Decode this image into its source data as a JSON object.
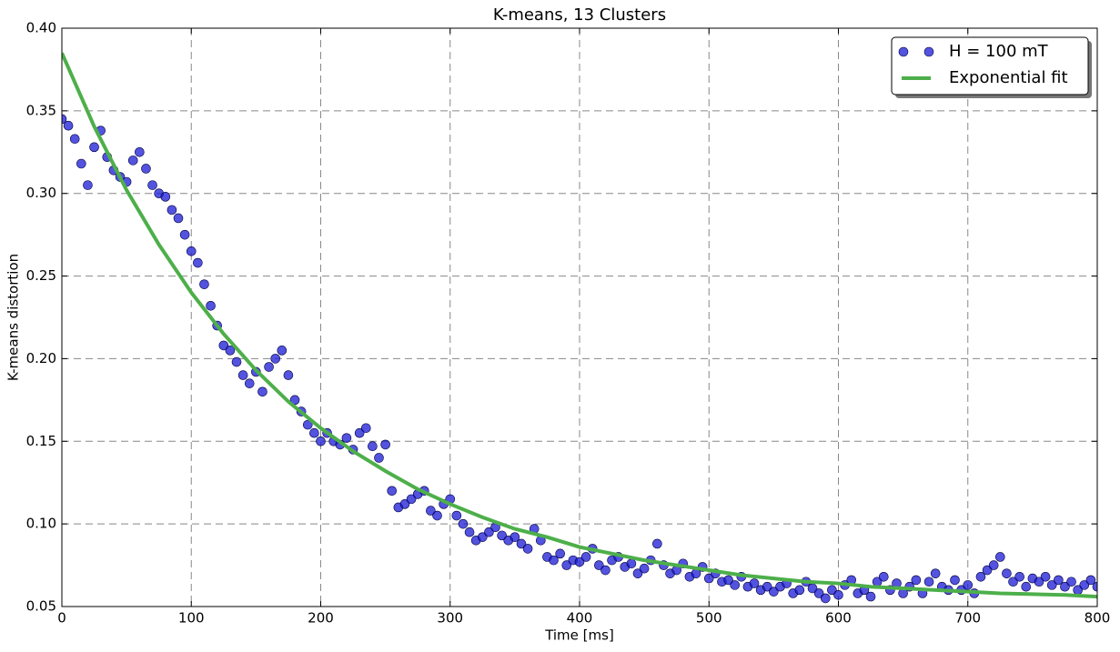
{
  "chart_data": {
    "type": "scatter",
    "title": "K-means, 13 Clusters",
    "xlabel": "Time [ms]",
    "ylabel": "K-means distortion",
    "xlim": [
      0,
      800
    ],
    "ylim": [
      0.05,
      0.4
    ],
    "xticks": [
      0,
      100,
      200,
      300,
      400,
      500,
      600,
      700,
      800
    ],
    "yticks": [
      0.05,
      {
        "value": 0.1,
        "label": "0.10"
      },
      0.15,
      {
        "value": 0.2,
        "label": "0.20"
      },
      0.25,
      {
        "value": 0.3,
        "label": "0.30"
      },
      0.35,
      {
        "value": 0.4,
        "label": "0.40"
      }
    ],
    "grid": true,
    "legend": "upper right",
    "series": [
      {
        "name": "H = 100 mT",
        "type": "scatter",
        "color": "#1a1ad6",
        "x": [
          0,
          5,
          10,
          15,
          20,
          25,
          30,
          35,
          40,
          45,
          50,
          55,
          60,
          65,
          70,
          75,
          80,
          85,
          90,
          95,
          100,
          105,
          110,
          115,
          120,
          125,
          130,
          135,
          140,
          145,
          150,
          155,
          160,
          165,
          170,
          175,
          180,
          185,
          190,
          195,
          200,
          205,
          210,
          215,
          220,
          225,
          230,
          235,
          240,
          245,
          250,
          255,
          260,
          265,
          270,
          275,
          280,
          285,
          290,
          295,
          300,
          305,
          310,
          315,
          320,
          325,
          330,
          335,
          340,
          345,
          350,
          355,
          360,
          365,
          370,
          375,
          380,
          385,
          390,
          395,
          400,
          405,
          410,
          415,
          420,
          425,
          430,
          435,
          440,
          445,
          450,
          455,
          460,
          465,
          470,
          475,
          480,
          485,
          490,
          495,
          500,
          505,
          510,
          515,
          520,
          525,
          530,
          535,
          540,
          545,
          550,
          555,
          560,
          565,
          570,
          575,
          580,
          585,
          590,
          595,
          600,
          605,
          610,
          615,
          620,
          625,
          630,
          635,
          640,
          645,
          650,
          655,
          660,
          665,
          670,
          675,
          680,
          685,
          690,
          695,
          700,
          705,
          710,
          715,
          720,
          725,
          730,
          735,
          740,
          745,
          750,
          755,
          760,
          765,
          770,
          775,
          780,
          785,
          790,
          795,
          800
        ],
        "values": [
          0.345,
          0.341,
          0.333,
          0.318,
          0.305,
          0.328,
          0.338,
          0.322,
          0.314,
          0.31,
          0.307,
          0.32,
          0.325,
          0.315,
          0.305,
          0.3,
          0.298,
          0.29,
          0.285,
          0.275,
          0.265,
          0.258,
          0.245,
          0.232,
          0.22,
          0.208,
          0.205,
          0.198,
          0.19,
          0.185,
          0.192,
          0.18,
          0.195,
          0.2,
          0.205,
          0.19,
          0.175,
          0.168,
          0.16,
          0.155,
          0.15,
          0.155,
          0.15,
          0.148,
          0.152,
          0.145,
          0.155,
          0.158,
          0.147,
          0.14,
          0.148,
          0.12,
          0.11,
          0.112,
          0.115,
          0.118,
          0.12,
          0.108,
          0.105,
          0.112,
          0.115,
          0.105,
          0.1,
          0.095,
          0.09,
          0.092,
          0.095,
          0.098,
          0.093,
          0.09,
          0.092,
          0.088,
          0.085,
          0.097,
          0.09,
          0.08,
          0.078,
          0.082,
          0.075,
          0.078,
          0.077,
          0.08,
          0.085,
          0.075,
          0.072,
          0.078,
          0.08,
          0.074,
          0.076,
          0.07,
          0.073,
          0.078,
          0.088,
          0.075,
          0.07,
          0.072,
          0.076,
          0.068,
          0.07,
          0.074,
          0.067,
          0.07,
          0.065,
          0.066,
          0.063,
          0.068,
          0.062,
          0.064,
          0.06,
          0.062,
          0.059,
          0.062,
          0.064,
          0.058,
          0.06,
          0.065,
          0.061,
          0.058,
          0.055,
          0.06,
          0.057,
          0.063,
          0.066,
          0.058,
          0.06,
          0.056,
          0.065,
          0.068,
          0.06,
          0.064,
          0.058,
          0.062,
          0.066,
          0.058,
          0.065,
          0.07,
          0.062,
          0.06,
          0.066,
          0.06,
          0.063,
          0.058,
          0.068,
          0.072,
          0.075,
          0.08,
          0.07,
          0.065,
          0.068,
          0.062,
          0.067,
          0.065,
          0.068,
          0.063,
          0.066,
          0.062,
          0.065,
          0.06,
          0.063,
          0.066,
          0.062
        ]
      },
      {
        "name": "Exponential fit",
        "type": "line",
        "color": "#4daf4a",
        "x": [
          0,
          25,
          50,
          75,
          100,
          125,
          150,
          175,
          200,
          225,
          250,
          275,
          300,
          325,
          350,
          375,
          400,
          425,
          450,
          475,
          500,
          525,
          550,
          575,
          600,
          625,
          650,
          675,
          700,
          725,
          750,
          775,
          800
        ],
        "values": [
          0.385,
          0.3405,
          0.302,
          0.269,
          0.24,
          0.215,
          0.193,
          0.174,
          0.158,
          0.144,
          0.132,
          0.121,
          0.112,
          0.104,
          0.097,
          0.092,
          0.086,
          0.082,
          0.078,
          0.075,
          0.072,
          0.069,
          0.067,
          0.065,
          0.064,
          0.062,
          0.061,
          0.06,
          0.059,
          0.058,
          0.0575,
          0.057,
          0.056
        ]
      }
    ]
  }
}
